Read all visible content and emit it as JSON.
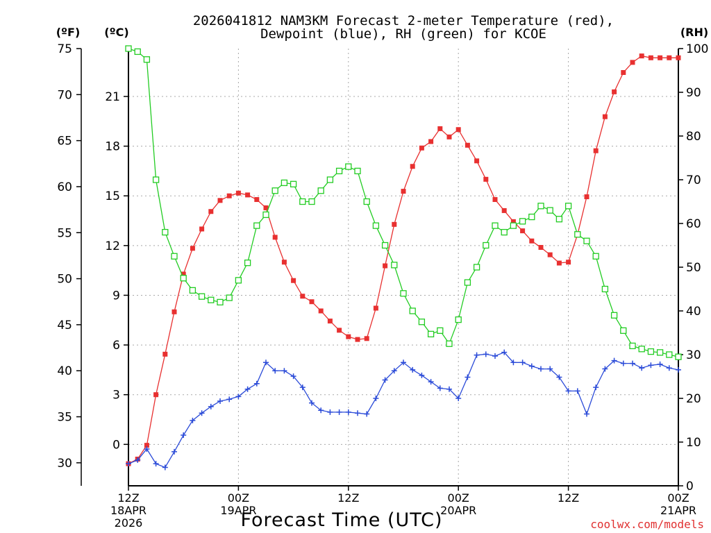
{
  "chart_data": {
    "type": "line",
    "title_line1": "2026041812 NAM3KM Forecast 2-meter Temperature (red),",
    "title_line2": "Dewpoint (blue), RH (green) for KCOE",
    "xlabel": "Forecast Time (UTC)",
    "watermark": "coolwx.com/models",
    "left_unit_f": "(ºF)",
    "left_unit_c": "(ºC)",
    "right_unit": "(RH)",
    "x_range_hours": [
      0,
      60
    ],
    "fahrenheit_range": [
      27.5,
      75
    ],
    "celsius_range": [
      -2.5,
      23.9
    ],
    "rh_range": [
      0,
      100
    ],
    "f_ticks": [
      30,
      35,
      40,
      45,
      50,
      55,
      60,
      65,
      70,
      75
    ],
    "c_ticks": [
      0,
      3,
      6,
      9,
      12,
      15,
      18,
      21
    ],
    "rh_ticks": [
      0,
      10,
      20,
      30,
      40,
      50,
      60,
      70,
      80,
      90,
      100
    ],
    "x_ticks": [
      {
        "hour": 0,
        "lines": [
          "12Z",
          "18APR",
          "2026"
        ]
      },
      {
        "hour": 12,
        "lines": [
          "00Z",
          "19APR"
        ]
      },
      {
        "hour": 24,
        "lines": [
          "12Z"
        ]
      },
      {
        "hour": 36,
        "lines": [
          "00Z",
          "20APR"
        ]
      },
      {
        "hour": 48,
        "lines": [
          "12Z"
        ]
      },
      {
        "hour": 60,
        "lines": [
          "00Z",
          "21APR"
        ]
      }
    ],
    "x_hours": [
      0,
      1,
      2,
      3,
      4,
      5,
      6,
      7,
      8,
      9,
      10,
      11,
      12,
      13,
      14,
      15,
      16,
      17,
      18,
      19,
      20,
      21,
      22,
      23,
      24,
      25,
      26,
      27,
      28,
      29,
      30,
      31,
      32,
      33,
      34,
      35,
      36,
      37,
      38,
      39,
      40,
      41,
      42,
      43,
      44,
      45,
      46,
      47,
      48,
      49,
      50,
      51,
      52,
      53,
      54,
      55,
      56,
      57,
      58,
      59,
      60
    ],
    "series": [
      {
        "name": "Temperature",
        "unit": "F",
        "color": "#e83030",
        "marker": "filled-square",
        "values": [
          29.9,
          30.4,
          31.9,
          37.4,
          41.8,
          46.4,
          50.5,
          53.3,
          55.4,
          57.3,
          58.5,
          59.0,
          59.3,
          59.1,
          58.6,
          57.7,
          54.5,
          51.8,
          49.8,
          48.1,
          47.5,
          46.5,
          45.4,
          44.4,
          43.7,
          43.4,
          43.5,
          46.8,
          51.4,
          55.9,
          59.5,
          62.2,
          64.2,
          64.9,
          66.3,
          65.4,
          66.2,
          64.5,
          62.8,
          60.8,
          58.6,
          57.4,
          56.2,
          55.2,
          54.1,
          53.4,
          52.6,
          51.7,
          51.8,
          54.8,
          58.9,
          63.9,
          67.6,
          70.3,
          72.4,
          73.5,
          74.2,
          74.0,
          74.0,
          74.0,
          74.0
        ]
      },
      {
        "name": "Dewpoint",
        "unit": "F",
        "color": "#2a4ad8",
        "marker": "plus",
        "values": [
          29.9,
          30.3,
          31.5,
          29.9,
          29.5,
          31.2,
          33.0,
          34.6,
          35.4,
          36.1,
          36.7,
          36.9,
          37.2,
          38.0,
          38.6,
          40.9,
          40.0,
          40.0,
          39.4,
          38.2,
          36.5,
          35.7,
          35.5,
          35.5,
          35.5,
          35.4,
          35.3,
          37.0,
          39.0,
          40.0,
          40.9,
          40.1,
          39.5,
          38.8,
          38.1,
          38.0,
          37.0,
          39.3,
          41.7,
          41.8,
          41.6,
          42.0,
          40.9,
          40.9,
          40.5,
          40.2,
          40.2,
          39.3,
          37.8,
          37.8,
          35.3,
          38.2,
          40.2,
          41.1,
          40.8,
          40.8,
          40.3,
          40.6,
          40.7,
          40.3,
          40.1
        ]
      },
      {
        "name": "RH",
        "unit": "%",
        "color": "#22cc22",
        "marker": "open-square",
        "values": [
          100,
          99.3,
          97.5,
          70,
          58,
          52.5,
          47.5,
          44.7,
          43.3,
          42.5,
          42,
          43,
          47,
          51,
          59.5,
          62,
          67.5,
          69.3,
          69,
          65,
          65,
          67.5,
          70,
          72,
          73,
          72,
          65,
          59.5,
          55,
          50.5,
          44,
          40,
          37.5,
          34.7,
          35.5,
          32.5,
          38,
          46.5,
          50,
          55,
          59.5,
          58,
          59.5,
          60.5,
          61.5,
          64,
          63,
          61,
          64,
          57.5,
          56,
          52.5,
          45,
          39,
          35.5,
          32,
          31.3,
          30.7,
          30.5,
          30,
          29.5
        ]
      }
    ]
  }
}
